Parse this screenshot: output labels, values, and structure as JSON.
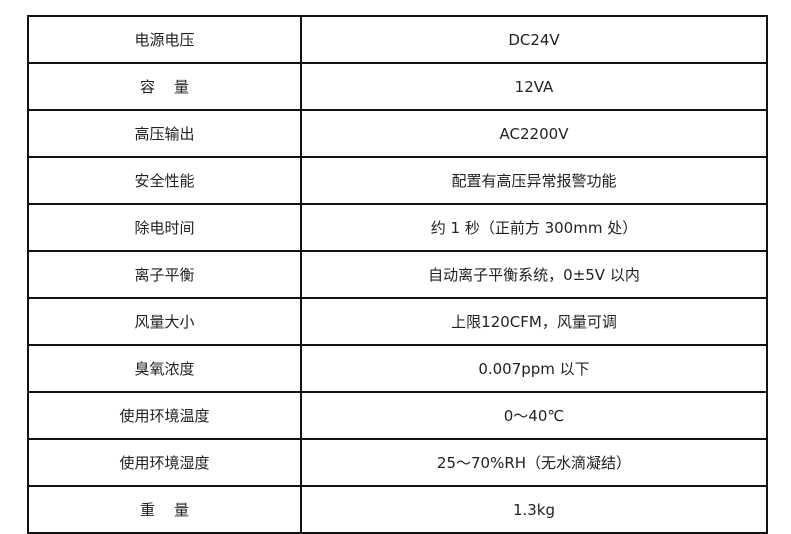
{
  "spec_table": {
    "rows": [
      {
        "label": "电源电压",
        "value": "DC24V"
      },
      {
        "label": "容    量",
        "value": "12VA"
      },
      {
        "label": "高压输出",
        "value": "AC2200V"
      },
      {
        "label": "安全性能",
        "value": "配置有高压异常报警功能"
      },
      {
        "label": "除电时间",
        "value": "约 1 秒（正前方 300mm 处）"
      },
      {
        "label": "离子平衡",
        "value": "自动离子平衡系统，0±5V 以内"
      },
      {
        "label": "风量大小",
        "value": "上限120CFM，风量可调"
      },
      {
        "label": "臭氧浓度",
        "value": "0.007ppm 以下"
      },
      {
        "label": "使用环境温度",
        "value": "0～40℃"
      },
      {
        "label": "使用环境湿度",
        "value": "25～70%RH（无水滴凝结）"
      },
      {
        "label": "重    量",
        "value": "1.3kg"
      }
    ]
  }
}
